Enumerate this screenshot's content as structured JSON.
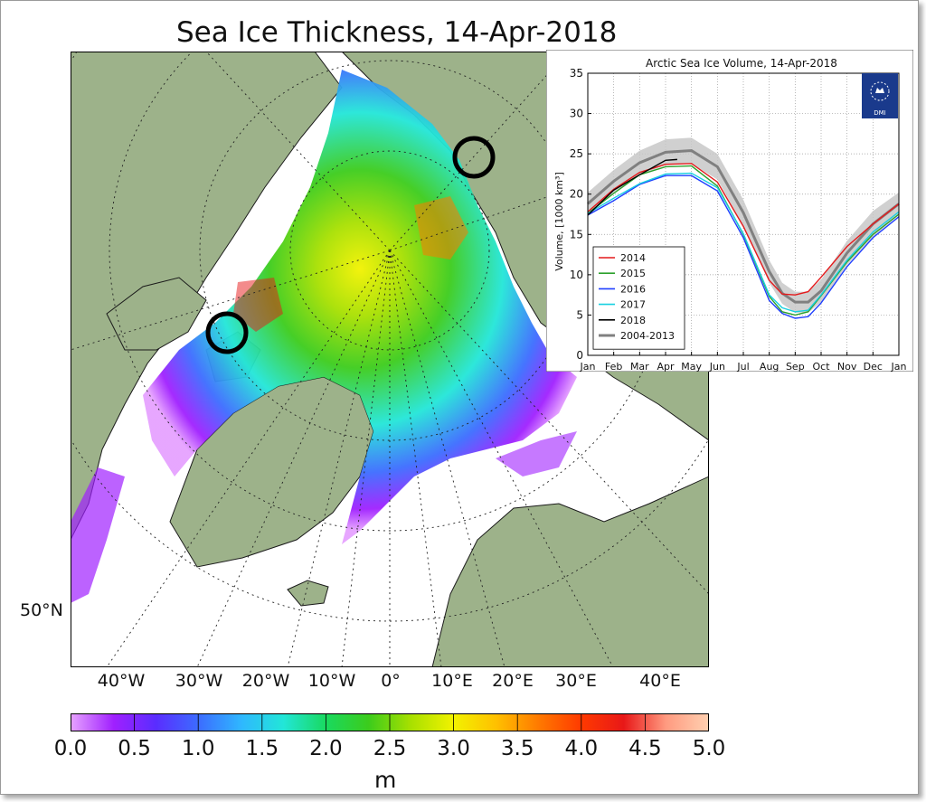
{
  "map": {
    "title": "Sea Ice Thickness, 14-Apr-2018",
    "longitude_labels": [
      "40°W",
      "30°W",
      "20°W",
      "10°W",
      "0°",
      "10°E",
      "20°E",
      "30°E",
      "40°E"
    ],
    "latitude_label": "50°N",
    "colorbar": {
      "ticks": [
        "0.0",
        "0.5",
        "1.0",
        "1.5",
        "2.0",
        "2.5",
        "3.0",
        "3.5",
        "4.0",
        "4.5",
        "5.0"
      ],
      "unit": "m",
      "colors": [
        "#e6a2ff",
        "#a020ff",
        "#5a2dff",
        "#3c6cff",
        "#2fb7ff",
        "#22e6d8",
        "#19d95f",
        "#3ccc1c",
        "#a8e000",
        "#f2f200",
        "#ffc000",
        "#ff7a00",
        "#ff3a00",
        "#e81818",
        "#ff9a80",
        "#ffd0b0"
      ]
    },
    "land_color": "#9db28a",
    "ocean_color": "#ffffff",
    "markers": [
      "circle-beaufort-sea",
      "circle-laptev-sea"
    ]
  },
  "chart_data": {
    "type": "line",
    "title": "Arctic Sea Ice Volume, 14-Apr-2018",
    "ylabel": "Volume, [1000 km³]",
    "xlabel": "",
    "x": [
      "Jan",
      "Feb",
      "Mar",
      "Apr",
      "May",
      "Jun",
      "Jul",
      "Aug",
      "Sep",
      "Oct",
      "Nov",
      "Dec",
      "Jan"
    ],
    "ylim": [
      0,
      35
    ],
    "yticks": [
      "0",
      "5",
      "10",
      "15",
      "20",
      "25",
      "30",
      "35"
    ],
    "grid": true,
    "legend_position": "bottom-left",
    "logo_text": "DMI",
    "months_numeric": [
      0,
      1,
      2,
      3,
      4,
      5,
      6,
      7,
      8,
      9,
      10,
      11,
      12
    ],
    "series": [
      {
        "name": "2014",
        "color": "#e41a1c",
        "x": [
          0,
          1,
          2,
          3,
          4,
          5,
          6,
          7,
          7.5,
          8,
          8.5,
          9,
          10,
          11,
          12
        ],
        "y": [
          17.8,
          20.6,
          22.7,
          23.7,
          23.8,
          21.5,
          16.0,
          9.3,
          7.6,
          7.5,
          7.9,
          9.7,
          13.5,
          16.3,
          18.8
        ]
      },
      {
        "name": "2015",
        "color": "#2ca02c",
        "x": [
          0,
          1,
          2,
          3,
          4,
          5,
          6,
          7,
          7.5,
          8,
          8.5,
          9,
          10,
          11,
          12
        ],
        "y": [
          17.6,
          20.1,
          22.4,
          23.4,
          23.5,
          21.0,
          15.0,
          7.3,
          5.4,
          5.0,
          5.4,
          7.4,
          11.6,
          15.0,
          17.5
        ]
      },
      {
        "name": "2016",
        "color": "#1f3fff",
        "x": [
          0,
          1,
          2,
          3,
          4,
          5,
          6,
          7,
          7.5,
          8,
          8.5,
          9,
          10,
          11,
          12
        ],
        "y": [
          17.4,
          19.2,
          21.2,
          22.3,
          22.3,
          20.4,
          14.6,
          6.8,
          5.2,
          4.6,
          4.8,
          6.5,
          11.0,
          14.6,
          17.2
        ]
      },
      {
        "name": "2017",
        "color": "#17d0e0",
        "x": [
          0,
          1,
          2,
          3,
          4,
          5,
          6,
          7,
          7.5,
          8,
          8.5,
          9,
          10,
          11,
          12
        ],
        "y": [
          17.6,
          19.5,
          21.3,
          22.5,
          22.6,
          20.8,
          15.1,
          7.5,
          5.9,
          5.4,
          5.6,
          7.5,
          11.8,
          15.3,
          17.8
        ]
      },
      {
        "name": "2018",
        "color": "#000000",
        "x": [
          0,
          1,
          2,
          3,
          3.45
        ],
        "y": [
          17.4,
          20.5,
          22.4,
          24.2,
          24.3
        ]
      },
      {
        "name": "2004-2013",
        "color": "#808080",
        "x": [
          0,
          1,
          2,
          3,
          4,
          5,
          6,
          7,
          7.5,
          8,
          8.5,
          9,
          10,
          11,
          12
        ],
        "y": [
          18.8,
          21.6,
          23.9,
          25.2,
          25.4,
          23.4,
          17.7,
          10.4,
          7.7,
          6.6,
          6.6,
          8.0,
          12.7,
          16.3,
          18.8
        ],
        "band_upper": [
          20.2,
          23.0,
          25.4,
          26.8,
          27.0,
          25.0,
          19.3,
          11.8,
          9.0,
          7.9,
          7.9,
          9.4,
          14.2,
          17.9,
          20.2
        ],
        "band_lower": [
          17.4,
          20.2,
          22.4,
          23.6,
          23.8,
          21.8,
          16.1,
          9.0,
          6.4,
          5.3,
          5.3,
          6.6,
          11.2,
          14.7,
          17.4
        ]
      }
    ]
  }
}
